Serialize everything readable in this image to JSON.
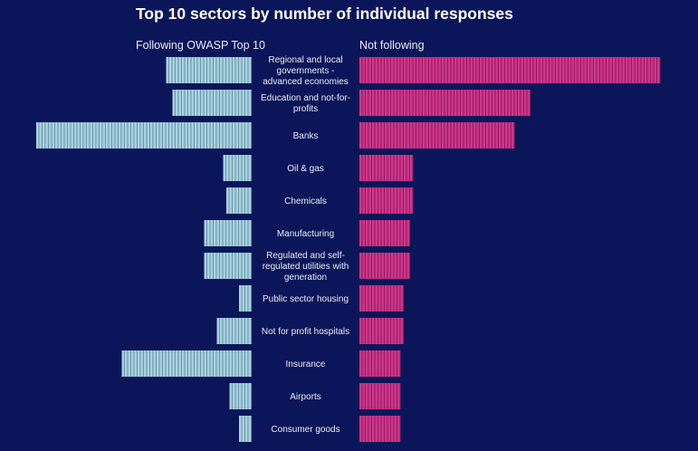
{
  "chart_data": {
    "type": "bar",
    "orientation": "horizontal-diverging",
    "title": "Top 10 sectors by number of individual responses",
    "categories": [
      "Regional and local governments - advanced economies",
      "Education and not-for-profits",
      "Banks",
      "Oil & gas",
      "Chemicals",
      "Manufacturing",
      "Regulated and self-regulated utilities with generation",
      "Public sector housing",
      "Not for profit hospitals",
      "Insurance",
      "Airports",
      "Consumer goods"
    ],
    "category_lines": [
      [
        "Regional and local",
        "governments -",
        "advanced economies"
      ],
      [
        "Education and not-for-",
        "profits"
      ],
      [
        "Banks"
      ],
      [
        "Oil & gas"
      ],
      [
        "Chemicals"
      ],
      [
        "Manufacturing"
      ],
      [
        "Regulated and self-",
        "regulated utilities with",
        "generation"
      ],
      [
        "Public sector housing"
      ],
      [
        "Not for profit hospitals"
      ],
      [
        "Insurance"
      ],
      [
        "Airports"
      ],
      [
        "Consumer goods"
      ]
    ],
    "series": [
      {
        "name": "Following OWASP Top 10",
        "side": "left",
        "color": "#a9d3df",
        "values": [
          27,
          25,
          68,
          9,
          8,
          15,
          15,
          4,
          11,
          41,
          7,
          4
        ]
      },
      {
        "name": "Not following",
        "side": "right",
        "color": "#c42b7b",
        "values": [
          95,
          54,
          49,
          17,
          17,
          16,
          16,
          14,
          14,
          13,
          13,
          13
        ]
      }
    ],
    "xlabel": "",
    "ylabel": "",
    "grid": false,
    "legend": "top"
  }
}
